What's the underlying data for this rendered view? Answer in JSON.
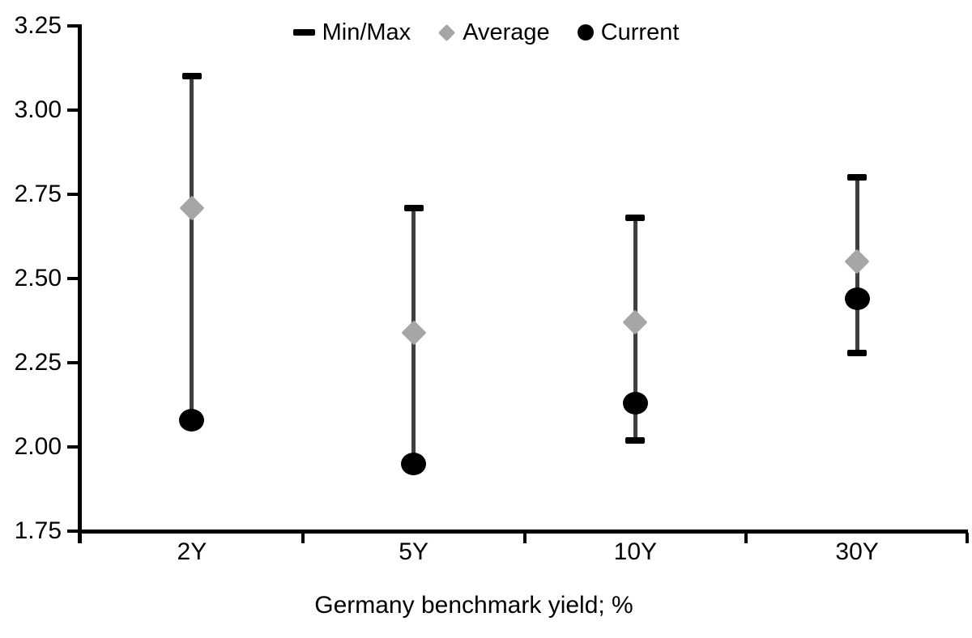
{
  "chart_data": {
    "type": "scatter",
    "subtype": "min-max-range-dot",
    "title": "",
    "xlabel": "Germany benchmark yield; %",
    "ylabel": "",
    "ylim": [
      1.75,
      3.25
    ],
    "ytick_labels": [
      "3.25",
      "3.00",
      "2.75",
      "2.50",
      "2.25",
      "2.00",
      "1.75"
    ],
    "categories": [
      "2Y",
      "5Y",
      "10Y",
      "30Y"
    ],
    "series": [
      {
        "name": "Min/Max",
        "type": "range",
        "min": [
          2.08,
          1.95,
          2.02,
          2.28
        ],
        "max": [
          3.1,
          2.71,
          2.68,
          2.8
        ]
      },
      {
        "name": "Average",
        "type": "point",
        "marker": "diamond",
        "values": [
          2.71,
          2.34,
          2.37,
          2.55
        ]
      },
      {
        "name": "Current",
        "type": "point",
        "marker": "circle",
        "values": [
          2.08,
          1.95,
          2.13,
          2.44
        ]
      }
    ],
    "legend": {
      "position": "top",
      "items": [
        {
          "label": "Min/Max",
          "marker": "dash",
          "color": "#000000"
        },
        {
          "label": "Average",
          "marker": "diamond",
          "color": "#a6a6a6"
        },
        {
          "label": "Current",
          "marker": "circle",
          "color": "#000000"
        }
      ]
    },
    "grid": false,
    "colors": {
      "range_line": "#3f3f3f",
      "minmax_cap": "#000000",
      "average_marker": "#a6a6a6",
      "current_marker": "#000000",
      "axis": "#000000",
      "text": "#000000",
      "background": "#ffffff"
    }
  }
}
